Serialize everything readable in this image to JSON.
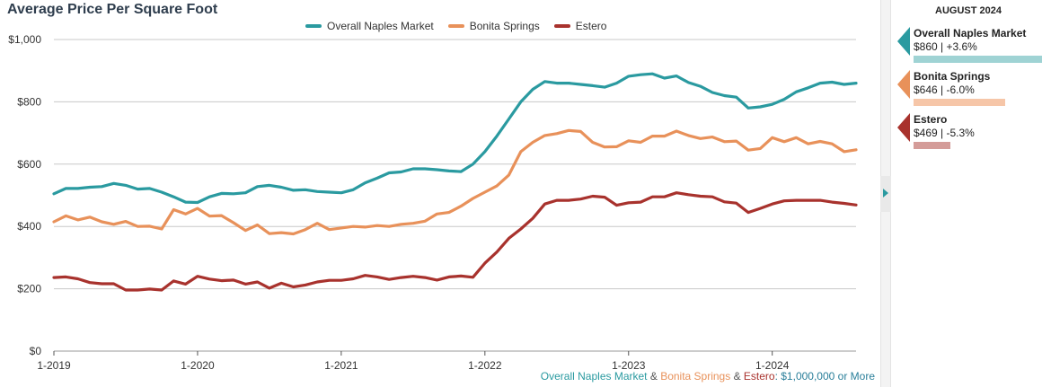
{
  "chart_data": {
    "type": "line",
    "title": "Average Price Per Square Foot",
    "x_tick_labels": [
      "1-2019",
      "1-2020",
      "1-2021",
      "1-2022",
      "1-2023",
      "1-2024"
    ],
    "y_tick_labels": [
      "$0",
      "$200",
      "$400",
      "$600",
      "$800",
      "$1,000"
    ],
    "ylim": [
      0,
      1000
    ],
    "x_range": [
      "2019-01",
      "2024-08"
    ],
    "grid": "horizontal",
    "legend_position": "top-center",
    "series": [
      {
        "name": "Overall Naples Market",
        "color": "#2a9aa0",
        "values": [
          505,
          522,
          522,
          526,
          528,
          538,
          532,
          520,
          522,
          510,
          495,
          478,
          477,
          495,
          506,
          505,
          508,
          528,
          532,
          526,
          516,
          518,
          512,
          510,
          508,
          518,
          540,
          555,
          572,
          575,
          585,
          585,
          582,
          578,
          576,
          600,
          640,
          690,
          745,
          800,
          840,
          865,
          860,
          860,
          856,
          852,
          847,
          860,
          882,
          887,
          890,
          876,
          883,
          862,
          850,
          830,
          820,
          815,
          780,
          784,
          792,
          808,
          832,
          845,
          860,
          863,
          856,
          860
        ]
      },
      {
        "name": "Bonita Springs",
        "color": "#e8915a",
        "values": [
          415,
          434,
          421,
          430,
          415,
          407,
          416,
          400,
          401,
          392,
          454,
          440,
          458,
          433,
          435,
          412,
          387,
          405,
          377,
          380,
          376,
          390,
          410,
          390,
          395,
          400,
          398,
          403,
          400,
          407,
          410,
          417,
          440,
          445,
          465,
          490,
          510,
          530,
          565,
          640,
          670,
          692,
          698,
          708,
          705,
          670,
          655,
          656,
          675,
          670,
          690,
          690,
          706,
          692,
          682,
          687,
          672,
          674,
          645,
          650,
          685,
          672,
          685,
          665,
          673,
          665,
          640,
          646
        ]
      },
      {
        "name": "Estero",
        "color": "#a8322d",
        "values": [
          236,
          238,
          232,
          220,
          216,
          216,
          196,
          196,
          199,
          196,
          225,
          215,
          240,
          231,
          226,
          228,
          215,
          222,
          202,
          218,
          206,
          212,
          222,
          227,
          227,
          232,
          243,
          238,
          230,
          236,
          240,
          236,
          228,
          238,
          241,
          237,
          282,
          318,
          362,
          392,
          426,
          472,
          484,
          484,
          488,
          497,
          494,
          468,
          476,
          478,
          495,
          495,
          508,
          502,
          497,
          495,
          479,
          475,
          445,
          458,
          472,
          482,
          484,
          484,
          484,
          478,
          474,
          469
        ]
      }
    ]
  },
  "footnote": {
    "parts": [
      "Overall Naples Market",
      " & ",
      "Bonita Springs",
      " & ",
      "Estero",
      ": $1,000,000 or More"
    ]
  },
  "side_panel": {
    "date": "AUGUST 2024",
    "cards": [
      {
        "name": "Overall Naples Market",
        "value": "$860 | +3.6%",
        "bar_fraction": 1.0
      },
      {
        "name": "Bonita Springs",
        "value": "$646 | -6.0%",
        "bar_fraction": 0.71
      },
      {
        "name": "Estero",
        "value": "$469 | -5.3%",
        "bar_fraction": 0.29
      }
    ]
  }
}
